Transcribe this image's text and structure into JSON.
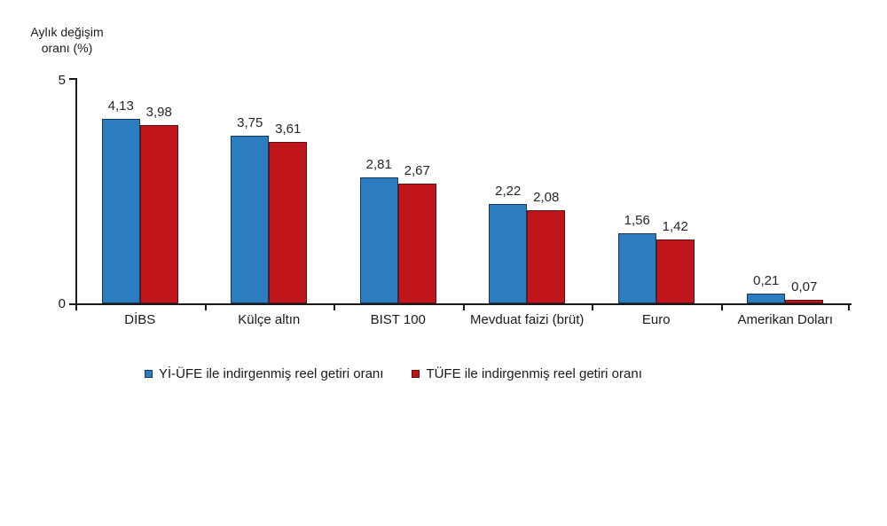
{
  "axis": {
    "y_label_line1": "Aylık değişim",
    "y_label_line2": "oranı (%)",
    "y_tick_top": "5",
    "y_tick_bottom": "0"
  },
  "chart_data": {
    "type": "bar",
    "title": "",
    "xlabel": "",
    "ylabel": "Aylık değişim oranı (%)",
    "categories": [
      "DİBS",
      "Külçe altın",
      "BIST 100",
      "Mevduat faizi (brüt)",
      "Euro",
      "Amerikan Doları"
    ],
    "series": [
      {
        "name": "Yİ-ÜFE ile indirgenmiş reel getiri oranı",
        "color": "#2B7DC0",
        "border_color": "#17375E",
        "values": [
          4.13,
          3.75,
          2.81,
          2.22,
          1.56,
          0.21
        ],
        "value_labels": [
          "4,13",
          "3,75",
          "2,81",
          "2,22",
          "1,56",
          "0,21"
        ]
      },
      {
        "name": "TÜFE ile indirgenmiş reel getiri oranı",
        "color": "#C0151B",
        "border_color": "#5F1013",
        "values": [
          3.98,
          3.61,
          2.67,
          2.08,
          1.42,
          0.07
        ],
        "value_labels": [
          "3,98",
          "3,61",
          "2,67",
          "2,08",
          "1,42",
          "0,07"
        ]
      }
    ],
    "ylim": [
      0,
      5
    ],
    "yticks": [
      0,
      5
    ],
    "grid": false,
    "legend_position": "bottom",
    "decimal_separator": ","
  }
}
